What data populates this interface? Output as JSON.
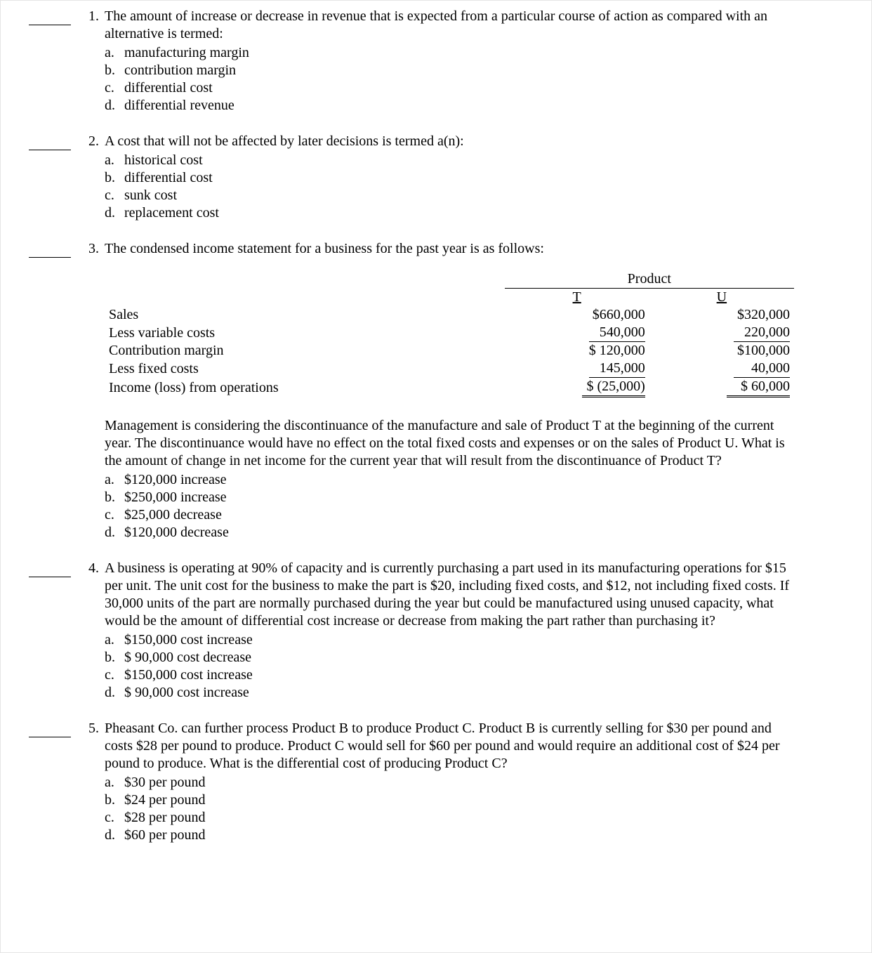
{
  "questions": [
    {
      "number": "1.",
      "stem": "The amount of increase or decrease in revenue that is expected from a particular course of action as compared with an alternative is termed:",
      "options": [
        {
          "letter": "a.",
          "text": "manufacturing margin"
        },
        {
          "letter": "b.",
          "text": "contribution margin"
        },
        {
          "letter": "c.",
          "text": "differential cost"
        },
        {
          "letter": "d.",
          "text": "differential revenue"
        }
      ]
    },
    {
      "number": "2.",
      "stem": "A cost that will not be affected by later decisions is termed a(n):",
      "options": [
        {
          "letter": "a.",
          "text": "historical cost"
        },
        {
          "letter": "b.",
          "text": "differential cost"
        },
        {
          "letter": "c.",
          "text": "sunk cost"
        },
        {
          "letter": "d.",
          "text": "replacement cost"
        }
      ]
    },
    {
      "number": "3.",
      "stem": "The condensed income statement for a business for the past year is as follows:",
      "table": {
        "header_group": "Product",
        "col_headers": [
          "T",
          "U"
        ],
        "rows": [
          {
            "label": "Sales",
            "t": "$660,000",
            "t_style": "plain",
            "u": "$320,000",
            "u_style": "plain"
          },
          {
            "label": "Less variable costs",
            "t": "540,000",
            "t_style": "uline",
            "u": "220,000",
            "u_style": "uline"
          },
          {
            "label": "Contribution margin",
            "t": "$ 120,000",
            "t_style": "plain",
            "u": "$100,000",
            "u_style": "plain"
          },
          {
            "label": "Less fixed costs",
            "t": "145,000",
            "t_style": "uline",
            "u": "40,000",
            "u_style": "uline"
          },
          {
            "label": "Income (loss) from operations",
            "t": "$ (25,000)",
            "t_style": "dbl",
            "u": "$ 60,000",
            "u_style": "dbl"
          }
        ]
      },
      "after_table": "Management is considering the discontinuance of the manufacture and sale of Product T at the beginning of the current year. The discontinuance would have no effect on the total fixed costs and expenses or on the sales of Product U. What is the amount of change in net income for the current year that will result from the discontinuance of Product T?",
      "options": [
        {
          "letter": "a.",
          "text": "$120,000 increase"
        },
        {
          "letter": "b.",
          "text": "$250,000 increase"
        },
        {
          "letter": "c.",
          "text": "$25,000 decrease"
        },
        {
          "letter": "d.",
          "text": "$120,000 decrease"
        }
      ]
    },
    {
      "number": "4.",
      "stem": "A business is operating at 90% of capacity and is currently purchasing a part used in its manufacturing operations for $15 per unit. The unit cost for the business to make the part is $20, including fixed costs, and $12, not including fixed costs. If 30,000 units of the part are normally purchased during the year but could be manufactured using unused capacity, what would be the amount of differential cost increase or decrease from making the part rather than purchasing it?",
      "options": [
        {
          "letter": "a.",
          "text": "$150,000 cost increase"
        },
        {
          "letter": "b.",
          "text": "$ 90,000 cost decrease"
        },
        {
          "letter": "c.",
          "text": "$150,000 cost increase"
        },
        {
          "letter": "d.",
          "text": "$ 90,000 cost increase"
        }
      ]
    },
    {
      "number": "5.",
      "stem": "Pheasant Co. can further process Product B to produce Product C. Product B is currently selling for $30 per pound and costs $28 per pound to produce. Product C would sell for $60 per pound and would require an additional cost of $24 per pound to produce. What is the differential cost of producing Product C?",
      "options": [
        {
          "letter": "a.",
          "text": "$30 per pound"
        },
        {
          "letter": "b.",
          "text": "$24 per pound"
        },
        {
          "letter": "c.",
          "text": "$28 per pound"
        },
        {
          "letter": "d.",
          "text": "$60 per pound"
        }
      ]
    }
  ]
}
